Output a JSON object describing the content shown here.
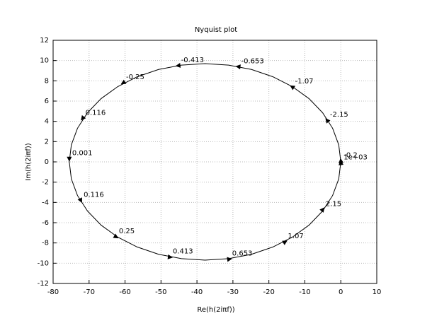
{
  "chart_data": {
    "type": "nyquist",
    "title": "Nyquist plot",
    "x_label": "Re(h(2iπf))",
    "y_label": "Im(h(2iπf))",
    "x": [
      0,
      -0.57,
      -2.28,
      -5.06,
      -8.83,
      -13.48,
      -18.88,
      -24.84,
      -31.19,
      -37.75,
      -44.31,
      -50.66,
      -56.63,
      -62.02,
      -66.67,
      -70.44,
      -73.22,
      -74.93,
      -75.5,
      -74.93,
      -73.22,
      -70.44,
      -66.67,
      -62.02,
      -56.63,
      -50.66,
      -44.31,
      -37.75,
      -31.19,
      -24.84,
      -18.88,
      -13.48,
      -8.83,
      -5.06,
      -2.28,
      -0.57,
      0
    ],
    "values": [
      0,
      1.68,
      3.32,
      4.85,
      6.24,
      7.43,
      8.4,
      9.12,
      9.55,
      9.7,
      9.55,
      9.12,
      8.4,
      7.43,
      6.24,
      4.85,
      3.32,
      1.68,
      0,
      -1.68,
      -3.32,
      -4.85,
      -6.24,
      -7.43,
      -8.4,
      -9.12,
      -9.55,
      -9.7,
      -9.55,
      -9.12,
      -8.4,
      -7.43,
      -6.24,
      -4.85,
      -3.32,
      -1.68,
      0
    ],
    "color": "#000000",
    "arrows": [
      {
        "label": "1e+03",
        "x": 0,
        "y": -0.1
      },
      {
        "label": "-0.2",
        "x": 0,
        "y": 0.1
      },
      {
        "label": "-2.15",
        "x": -3.8,
        "y": 4.1
      },
      {
        "label": "-1.07",
        "x": -13.5,
        "y": 7.4
      },
      {
        "label": "-0.653",
        "x": -28.5,
        "y": 9.4
      },
      {
        "label": "-0.413",
        "x": -45.2,
        "y": 9.5
      },
      {
        "label": "-0.25",
        "x": -60.5,
        "y": 7.8
      },
      {
        "label": "0.116",
        "x": -71.8,
        "y": 4.3
      },
      {
        "label": "0.001",
        "x": -75.5,
        "y": 0.3
      },
      {
        "label": "0.116",
        "x": -72.3,
        "y": -3.8
      },
      {
        "label": "0.25",
        "x": -62.5,
        "y": -7.4
      },
      {
        "label": "0.413",
        "x": -47.5,
        "y": -9.4
      },
      {
        "label": "0.653",
        "x": -31,
        "y": -9.6
      },
      {
        "label": "1.07",
        "x": -15.5,
        "y": -7.9
      },
      {
        "label": "2.15",
        "x": -5,
        "y": -4.7
      }
    ],
    "xlim": [
      -80,
      10
    ],
    "xticks": [
      -80,
      -70,
      -60,
      -50,
      -40,
      -30,
      -20,
      -10,
      0,
      10
    ],
    "ylim": [
      -12,
      12
    ],
    "yticks": [
      -12,
      -10,
      -8,
      -6,
      -4,
      -2,
      0,
      2,
      4,
      6,
      8,
      10,
      12
    ],
    "grid": true
  }
}
